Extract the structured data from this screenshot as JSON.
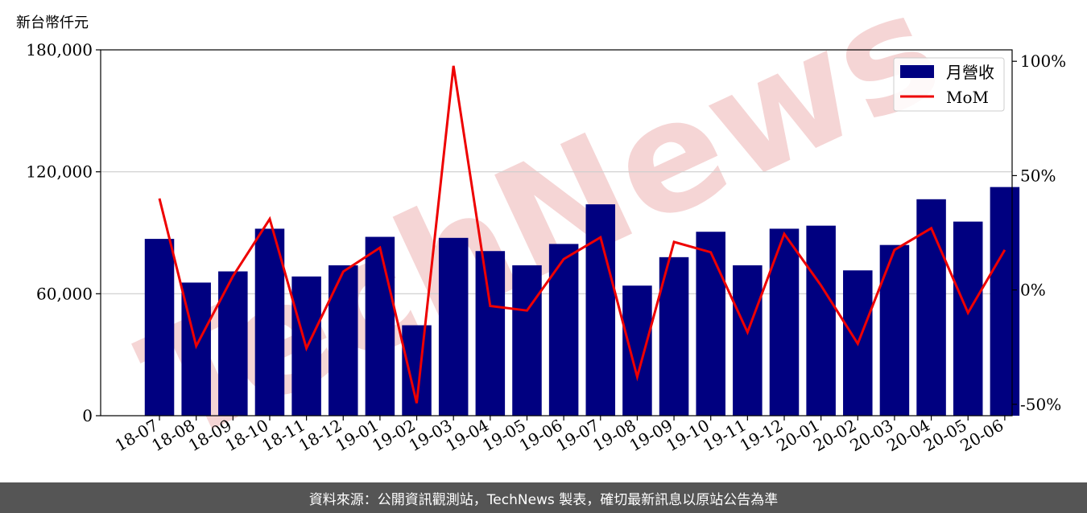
{
  "header": {
    "unit_label": "新台幣仟元"
  },
  "footer": {
    "source_text": "資料來源：公開資訊觀測站，TechNews 製表，確切最新訊息以原站公告為準"
  },
  "watermark": {
    "text": "TechNews",
    "color": "#f5d5d5"
  },
  "colors": {
    "bar": "#000080",
    "line": "#ee0000",
    "grid": "#cccccc"
  },
  "chart_data": {
    "type": "bar",
    "categories": [
      "18-07",
      "18-08",
      "18-09",
      "18-10",
      "18-11",
      "18-12",
      "19-01",
      "19-02",
      "19-03",
      "19-04",
      "19-05",
      "19-06",
      "19-07",
      "19-08",
      "19-09",
      "19-10",
      "19-11",
      "19-12",
      "20-01",
      "20-02",
      "20-03",
      "20-04",
      "20-05",
      "20-06"
    ],
    "series": [
      {
        "name": "月營收",
        "type": "bar",
        "axis": "left",
        "values": [
          87000,
          65500,
          71000,
          92000,
          68500,
          74000,
          88000,
          44500,
          87500,
          81000,
          74000,
          84500,
          104000,
          64000,
          78000,
          90500,
          74000,
          92000,
          93500,
          71500,
          84000,
          106500,
          95500,
          112500
        ]
      },
      {
        "name": "MoM",
        "type": "line",
        "axis": "right",
        "values": [
          40,
          -24.5,
          6,
          31,
          -25.5,
          8,
          18.5,
          -49.5,
          98,
          -7,
          -9,
          13.5,
          23,
          -38,
          21,
          16.5,
          -18.5,
          24.5,
          2,
          -23.5,
          17.5,
          27,
          -10,
          17.5
        ]
      }
    ],
    "ylim": [
      0,
      180000
    ],
    "yticks": [
      "0",
      "60,000",
      "120,000",
      "180,000"
    ],
    "y2lim": [
      -55,
      105
    ],
    "y2ticks": [
      "-50%",
      "0%",
      "50%",
      "100%"
    ],
    "legend_position": "top-right",
    "grid": "horizontal"
  }
}
